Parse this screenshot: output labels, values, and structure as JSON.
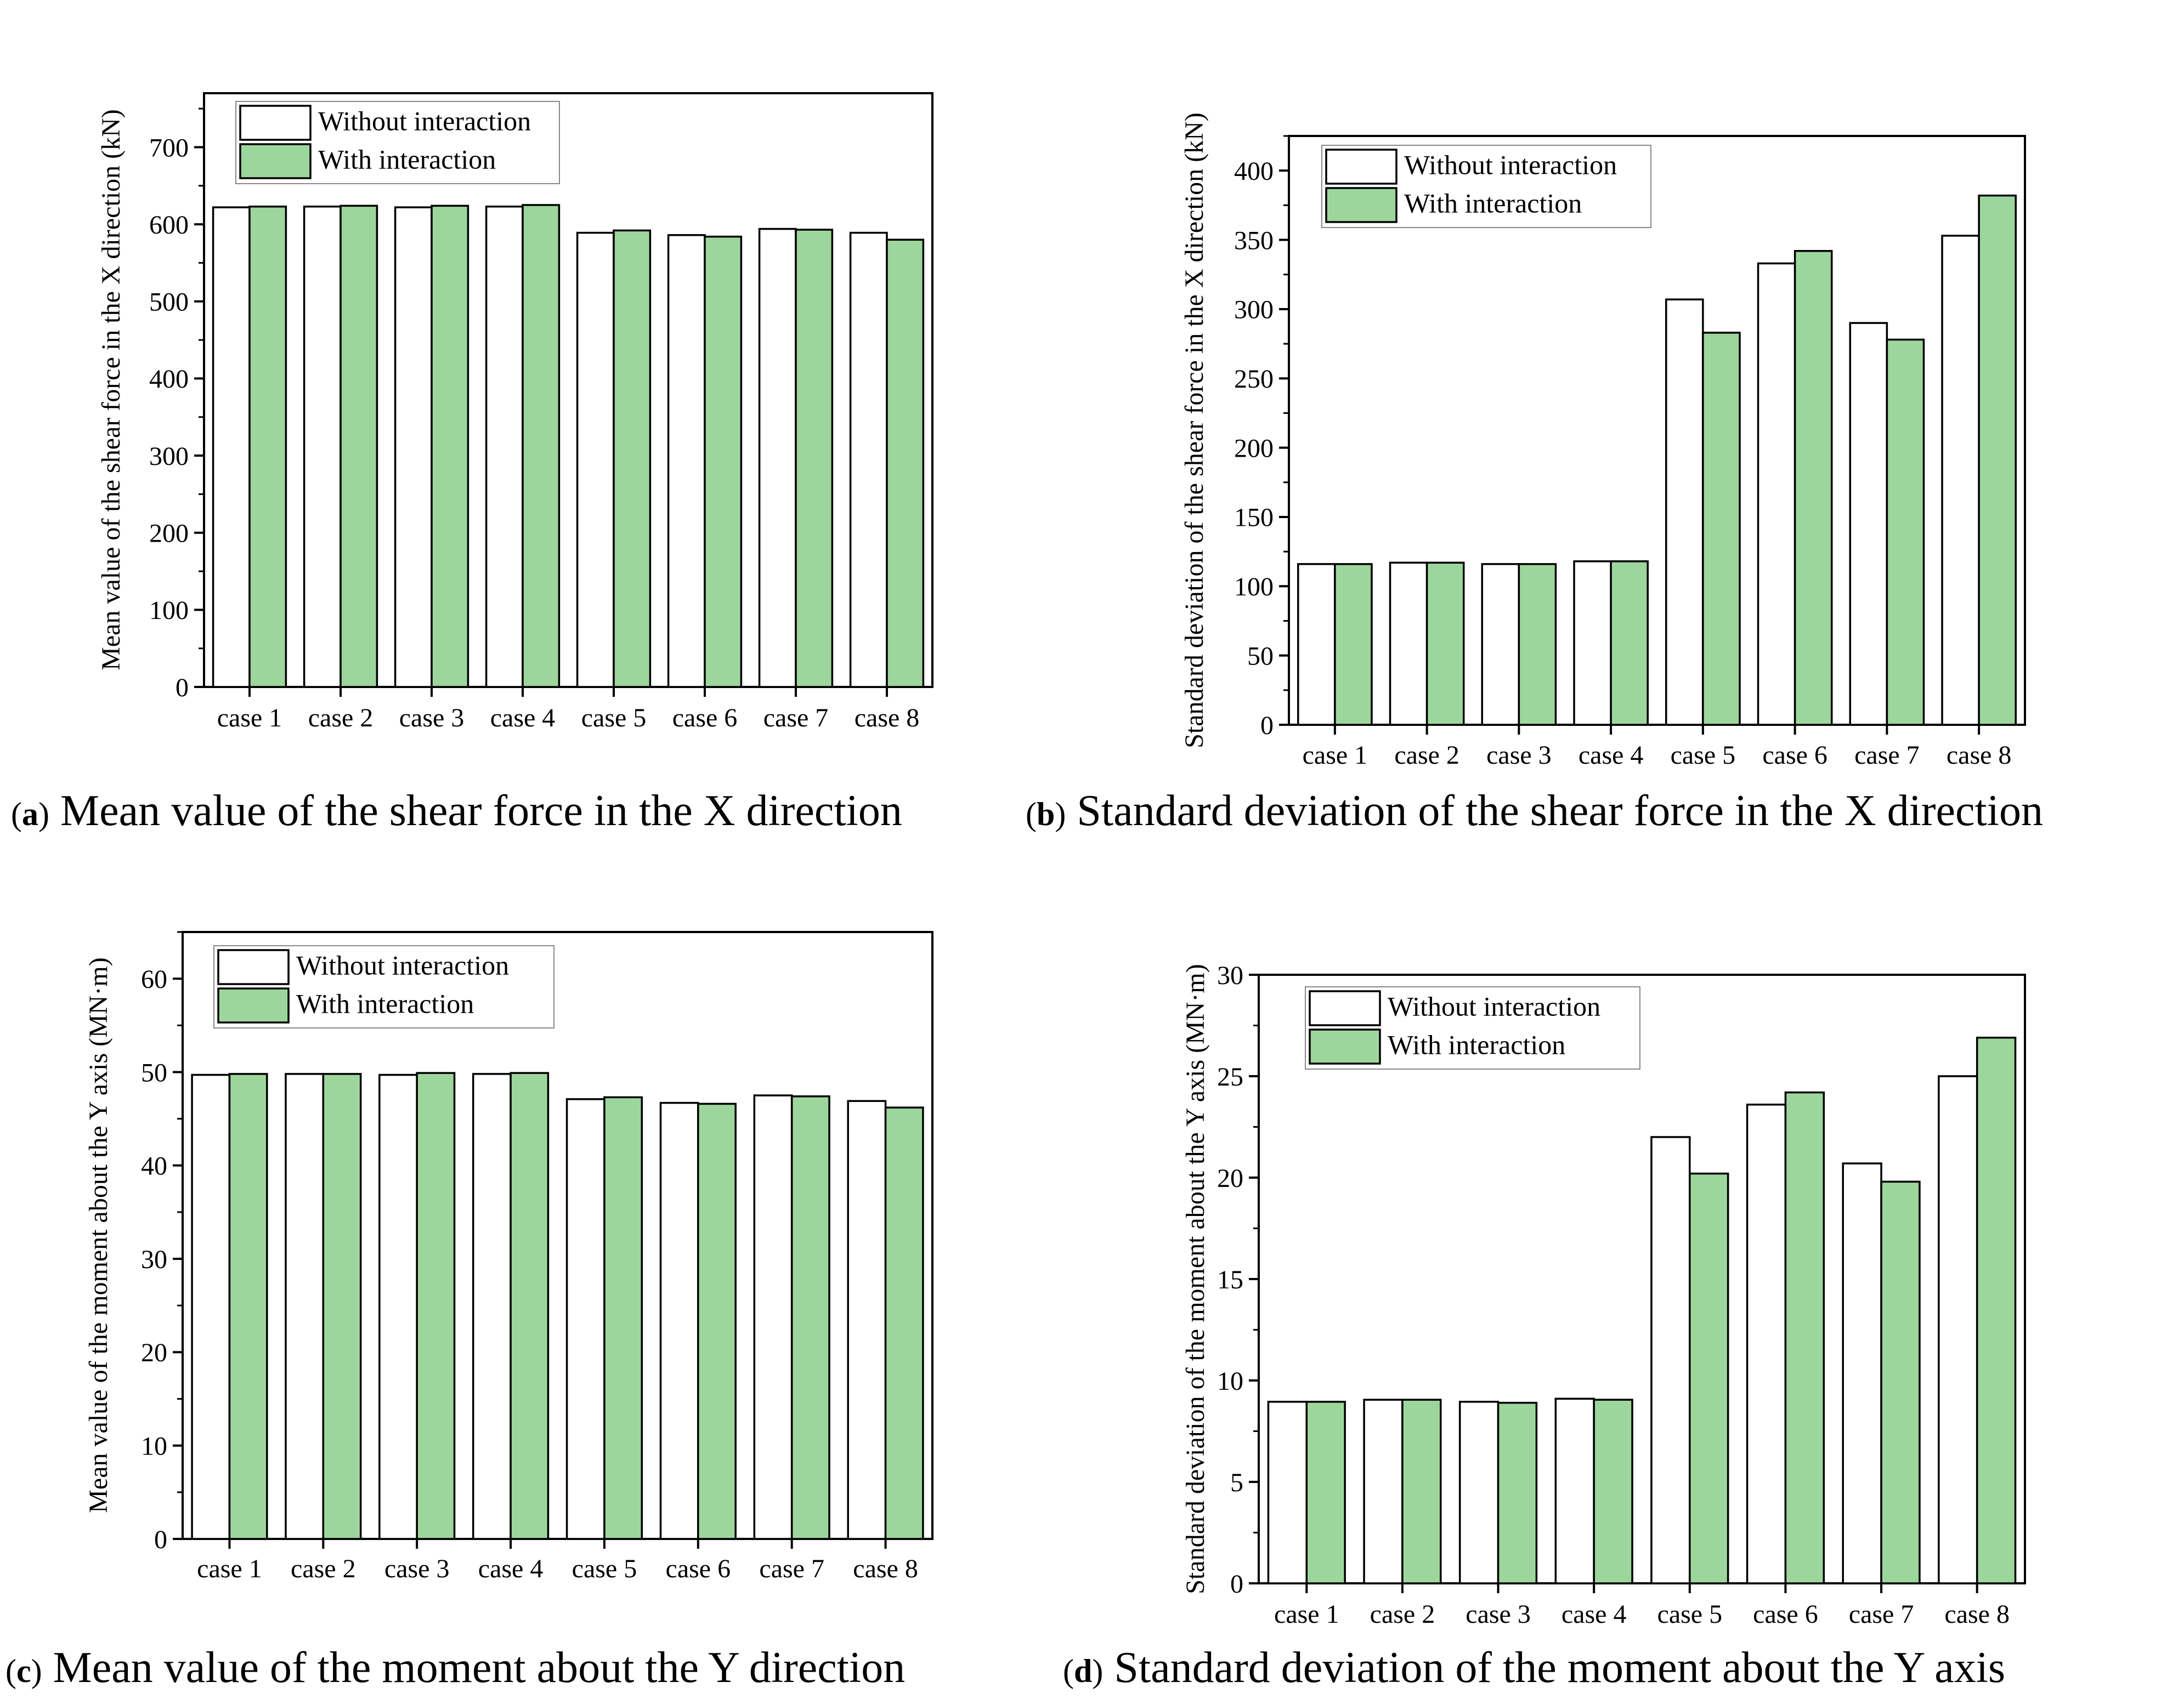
{
  "colors": {
    "without": "#ffffff",
    "with": "#9dd69c",
    "stroke": "#000000"
  },
  "chart_data": [
    {
      "panel": "a",
      "type": "bar",
      "caption_letter": "a",
      "caption_text": " Mean value of the shear force in the X direction",
      "ylabel": "Mean value of the shear force in the X direction (kN)",
      "categories": [
        "case 1",
        "case 2",
        "case 3",
        "case 4",
        "case 5",
        "case 6",
        "case 7",
        "case 8"
      ],
      "series": [
        {
          "name": "Without interaction",
          "values": [
            622,
            623,
            622,
            623,
            589,
            586,
            594,
            589
          ]
        },
        {
          "name": "With interaction",
          "values": [
            623,
            624,
            624,
            625,
            592,
            584,
            593,
            580
          ]
        }
      ],
      "ylim": [
        0,
        770
      ],
      "yticks": [
        0,
        100,
        200,
        300,
        400,
        500,
        600,
        700
      ],
      "legend": "top-left"
    },
    {
      "panel": "b",
      "type": "bar",
      "caption_letter": "b",
      "caption_text": " Standard deviation of the shear force in the X direction",
      "ylabel": "Standard deviation of the shear force in the X direction (kN)",
      "categories": [
        "case 1",
        "case 2",
        "case 3",
        "case 4",
        "case 5",
        "case 6",
        "case 7",
        "case 8"
      ],
      "series": [
        {
          "name": "Without interaction",
          "values": [
            116,
            117,
            116,
            118,
            307,
            333,
            290,
            353
          ]
        },
        {
          "name": "With interaction",
          "values": [
            116,
            117,
            116,
            118,
            283,
            342,
            278,
            382
          ]
        }
      ],
      "ylim": [
        0,
        425
      ],
      "yticks": [
        0,
        50,
        100,
        150,
        200,
        250,
        300,
        350,
        400
      ],
      "legend": "top-left"
    },
    {
      "panel": "c",
      "type": "bar",
      "caption_letter": "c",
      "caption_text": " Mean value of the moment about the Y direction",
      "ylabel": "Mean value of the moment about the Y axis (MN·m)",
      "categories": [
        "case 1",
        "case 2",
        "case 3",
        "case 4",
        "case 5",
        "case 6",
        "case 7",
        "case 8"
      ],
      "series": [
        {
          "name": "Without interaction",
          "values": [
            49.7,
            49.8,
            49.7,
            49.8,
            47.1,
            46.7,
            47.5,
            46.9
          ]
        },
        {
          "name": "With interaction",
          "values": [
            49.8,
            49.8,
            49.9,
            49.9,
            47.3,
            46.6,
            47.4,
            46.2
          ]
        }
      ],
      "ylim": [
        0,
        65
      ],
      "yticks": [
        0,
        10,
        20,
        30,
        40,
        50,
        60
      ],
      "legend": "top-left"
    },
    {
      "panel": "d",
      "type": "bar",
      "caption_letter": "d",
      "caption_text": " Standard deviation of the moment about the Y axis",
      "ylabel": "Standard deviation of the moment about the Y axis (MN·m)",
      "categories": [
        "case 1",
        "case 2",
        "case 3",
        "case 4",
        "case 5",
        "case 6",
        "case 7",
        "case 8"
      ],
      "series": [
        {
          "name": "Without interaction",
          "values": [
            8.95,
            9.05,
            8.95,
            9.1,
            22.0,
            23.6,
            20.7,
            25.0
          ]
        },
        {
          "name": "With interaction",
          "values": [
            8.95,
            9.05,
            8.9,
            9.05,
            20.2,
            24.2,
            19.8,
            26.9
          ]
        }
      ],
      "ylim": [
        0,
        30
      ],
      "yticks": [
        0,
        5,
        10,
        15,
        20,
        25,
        30
      ],
      "legend": "top-left"
    }
  ]
}
